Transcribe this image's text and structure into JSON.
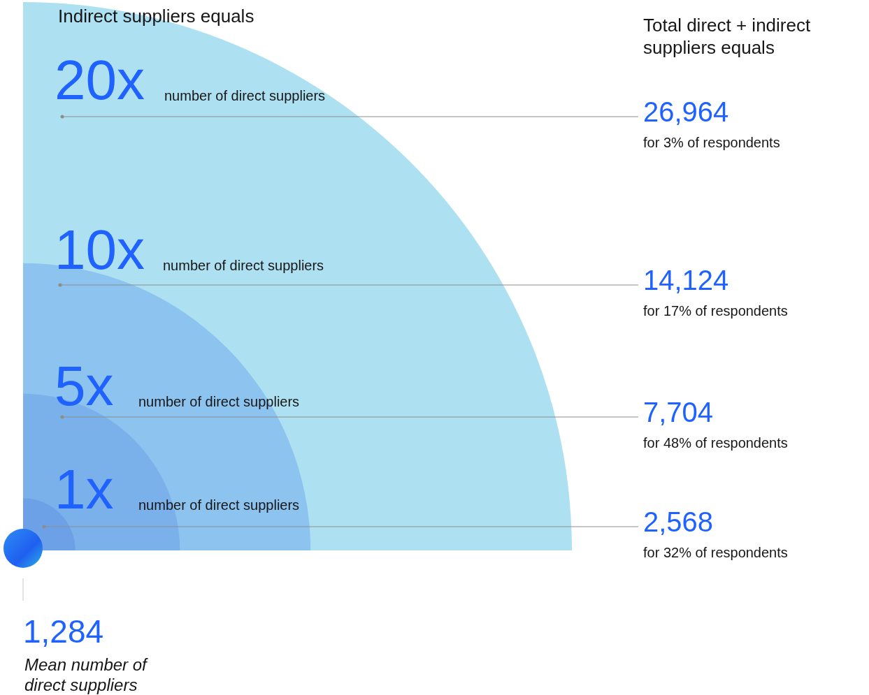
{
  "chart_data": {
    "type": "other",
    "title": "Indirect suppliers equals",
    "y2label": "Total direct + indirect suppliers equals",
    "categories": [
      "20x",
      "10x",
      "5x",
      "1x"
    ],
    "values": [
      26964,
      14124,
      7704,
      2568
    ],
    "value_labels": [
      "26,964",
      "14,124",
      "7,704",
      "2,568"
    ],
    "colors": [
      "#9fdcf0",
      "#86bdee",
      "#78aeea",
      "#6a9fe6"
    ],
    "annotations": [
      {
        "text": "number of direct suppliers",
        "x": "20x"
      },
      {
        "text": "number of direct suppliers",
        "x": "10x"
      },
      {
        "text": "number of direct suppliers",
        "x": "5x"
      },
      {
        "text": "number of direct suppliers",
        "x": "1x"
      },
      {
        "text": "for 3% of respondents",
        "x": "20x"
      },
      {
        "text": "for 17% of respondents",
        "x": "10x"
      },
      {
        "text": "for 48% of respondents",
        "x": "5x"
      },
      {
        "text": "for 32% of respondents",
        "x": "1x"
      },
      "1,284",
      "Mean number of direct suppliers"
    ]
  }
}
